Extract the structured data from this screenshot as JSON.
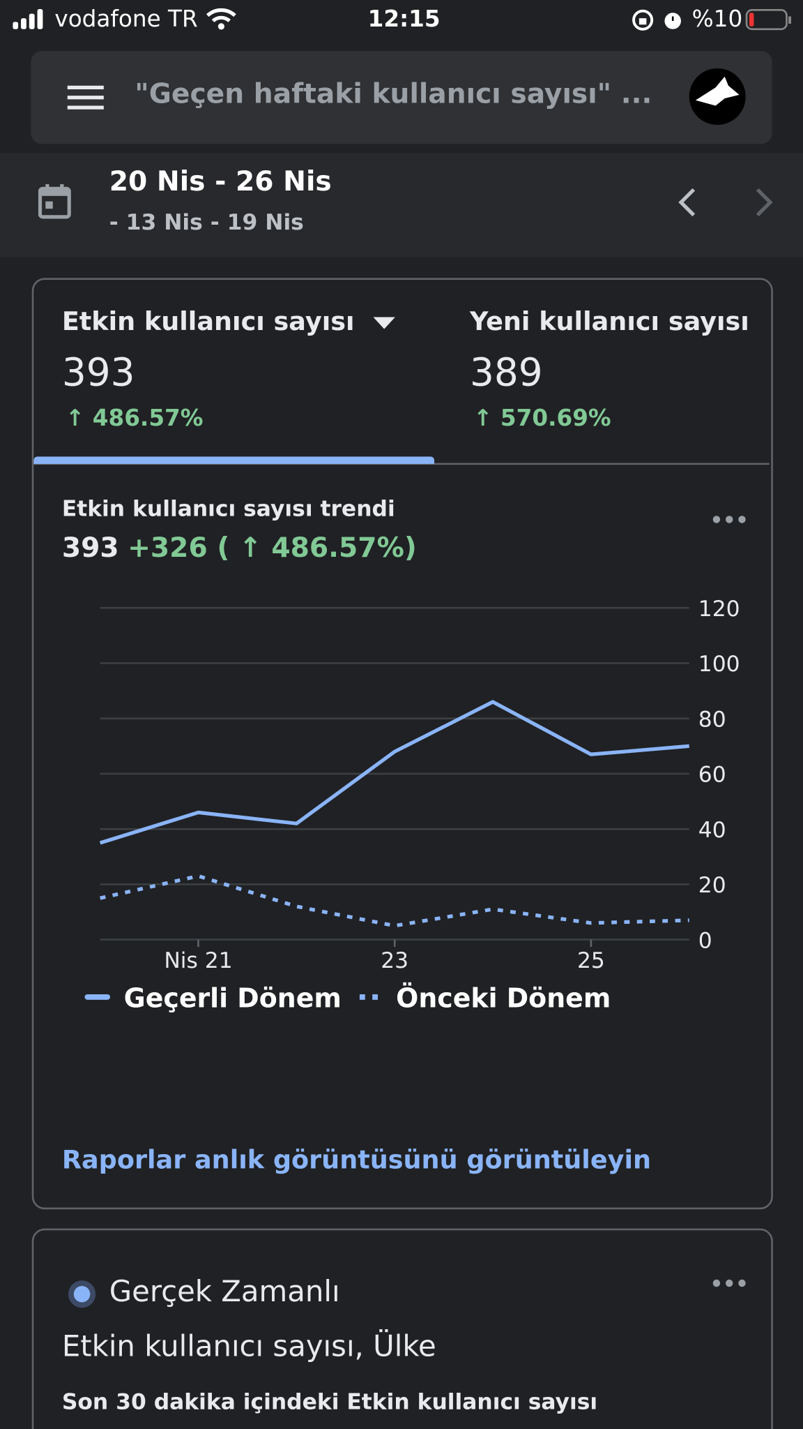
{
  "status_bar": {
    "carrier": "vodafone TR",
    "time": "12:15",
    "battery": "%10"
  },
  "search": {
    "placeholder": "\"Geçen haftaki kullanıcı sayısı\" ..."
  },
  "date_range": {
    "current": "20 Nis - 26 Nis",
    "previous": "- 13 Nis - 19 Nis"
  },
  "metrics": [
    {
      "label": "Etkin kullanıcı sayısı",
      "value": "393",
      "change": "↑ 486.57%"
    },
    {
      "label": "Yeni kullanıcı sayısı",
      "value": "389",
      "change": "↑ 570.69%"
    }
  ],
  "trend": {
    "title": "Etkin kullanıcı sayısı trendi",
    "value": "393",
    "change": "+326 ( ↑ 486.57%)"
  },
  "chart_data": {
    "type": "line",
    "categories": [
      null,
      "Nis 21",
      null,
      "23",
      null,
      "25",
      null
    ],
    "series": [
      {
        "name": "Geçerli Dönem",
        "color": "#8ab4f8",
        "style": "solid",
        "values": [
          35,
          46,
          42,
          68,
          86,
          67,
          70
        ]
      },
      {
        "name": "Önceki Dönem",
        "color": "#8ab4f8",
        "style": "dotted",
        "values": [
          15,
          23,
          12,
          5,
          11,
          6,
          7
        ]
      }
    ],
    "ylim": [
      0,
      120
    ],
    "yticks": [
      0,
      20,
      40,
      60,
      80,
      100,
      120
    ],
    "grid": true,
    "y_axis_side": "right"
  },
  "report_link": "Raporlar anlık görüntüsünü görüntüleyin",
  "realtime": {
    "title": "Gerçek Zamanlı",
    "subtitle": "Etkin kullanıcı sayısı, Ülke",
    "caption": "Son 30 dakika içindeki Etkin kullanıcı sayısı"
  }
}
